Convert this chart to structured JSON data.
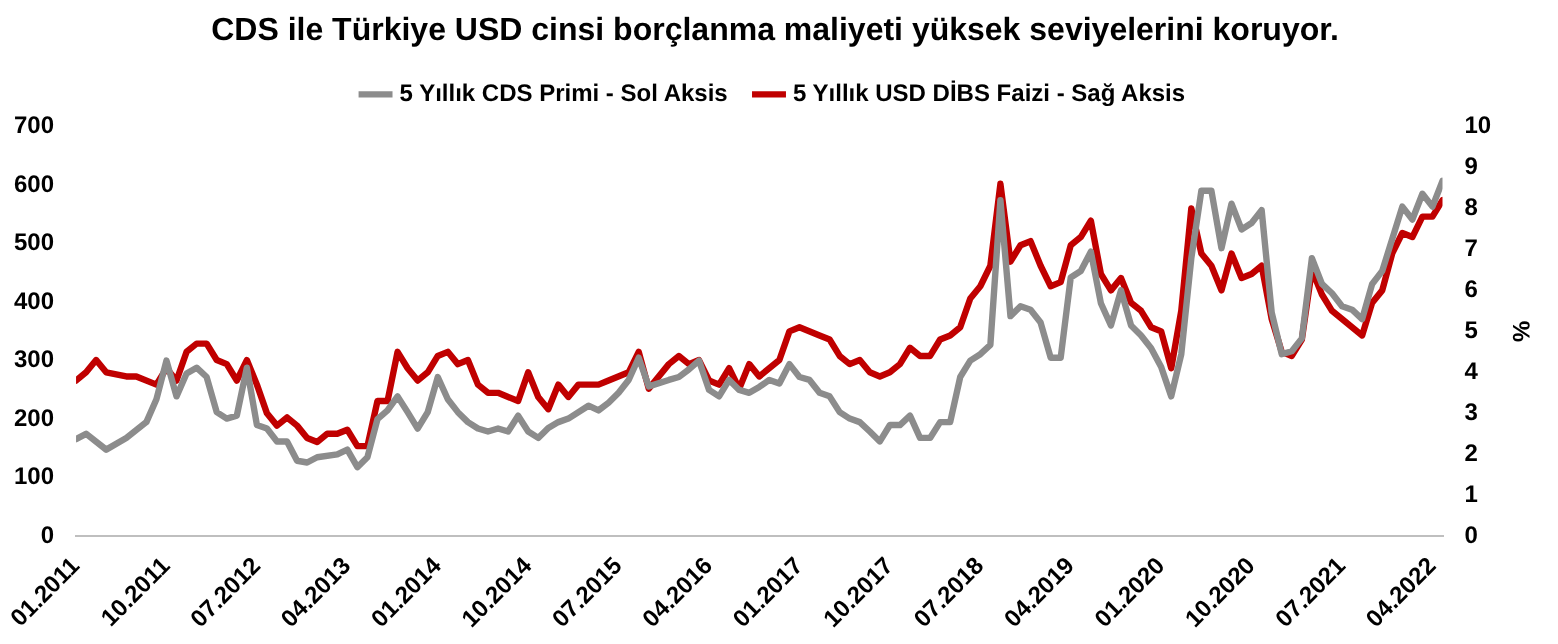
{
  "chart_data": {
    "type": "line",
    "title": "CDS ile Türkiye USD cinsi borçlanma maliyeti yüksek seviyelerini koruyor.",
    "y2label": "%",
    "legend": "top",
    "grid": false,
    "marker": "none",
    "line_style": "solid",
    "xlim": [
      "2011-01",
      "2022-05"
    ],
    "xticks": [
      {
        "value": "2011-01",
        "label": "01.2011"
      },
      {
        "value": "2011-10",
        "label": "10.2011"
      },
      {
        "value": "2012-07",
        "label": "07.2012"
      },
      {
        "value": "2013-04",
        "label": "04.2013"
      },
      {
        "value": "2014-01",
        "label": "01.2014"
      },
      {
        "value": "2014-10",
        "label": "10.2014"
      },
      {
        "value": "2015-07",
        "label": "07.2015"
      },
      {
        "value": "2016-04",
        "label": "04.2016"
      },
      {
        "value": "2017-01",
        "label": "01.2017"
      },
      {
        "value": "2017-10",
        "label": "10.2017"
      },
      {
        "value": "2018-07",
        "label": "07.2018"
      },
      {
        "value": "2019-04",
        "label": "04.2019"
      },
      {
        "value": "2020-01",
        "label": "01.2020"
      },
      {
        "value": "2020-10",
        "label": "10.2020"
      },
      {
        "value": "2021-07",
        "label": "07.2021"
      },
      {
        "value": "2022-04",
        "label": "04.2022"
      }
    ],
    "ylim": [
      0,
      700
    ],
    "yticks": [
      0,
      100,
      200,
      300,
      400,
      500,
      600,
      700
    ],
    "y2lim": [
      0,
      10
    ],
    "y2ticks": [
      0,
      1,
      2,
      3,
      4,
      5,
      6,
      7,
      8,
      9,
      10
    ],
    "series": [
      {
        "name": "5 Yıllık CDS Primi - Sol Aksis",
        "color": "#8c8c8c",
        "x": [
          "2011-01",
          "2011-02",
          "2011-04",
          "2011-06",
          "2011-08",
          "2011-09",
          "2011-10",
          "2011-11",
          "2011-12",
          "2012-01",
          "2012-02",
          "2012-03",
          "2012-04",
          "2012-05",
          "2012-06",
          "2012-07",
          "2012-08",
          "2012-09",
          "2012-10",
          "2012-11",
          "2012-12",
          "2013-01",
          "2013-03",
          "2013-04",
          "2013-05",
          "2013-06",
          "2013-07",
          "2013-08",
          "2013-09",
          "2013-10",
          "2013-11",
          "2013-12",
          "2014-01",
          "2014-02",
          "2014-03",
          "2014-04",
          "2014-05",
          "2014-06",
          "2014-07",
          "2014-08",
          "2014-09",
          "2014-10",
          "2014-11",
          "2014-12",
          "2015-01",
          "2015-02",
          "2015-04",
          "2015-05",
          "2015-06",
          "2015-07",
          "2015-08",
          "2015-09",
          "2015-10",
          "2015-12",
          "2016-01",
          "2016-02",
          "2016-03",
          "2016-04",
          "2016-05",
          "2016-06",
          "2016-07",
          "2016-08",
          "2016-09",
          "2016-10",
          "2016-11",
          "2016-12",
          "2017-01",
          "2017-02",
          "2017-03",
          "2017-04",
          "2017-05",
          "2017-06",
          "2017-07",
          "2017-08",
          "2017-09",
          "2017-10",
          "2017-11",
          "2017-12",
          "2018-01",
          "2018-02",
          "2018-03",
          "2018-04",
          "2018-05",
          "2018-06",
          "2018-07",
          "2018-08",
          "2018-09",
          "2018-10",
          "2018-11",
          "2018-12",
          "2019-01",
          "2019-02",
          "2019-03",
          "2019-04",
          "2019-05",
          "2019-06",
          "2019-07",
          "2019-08",
          "2019-09",
          "2019-10",
          "2019-11",
          "2019-12",
          "2020-01",
          "2020-02",
          "2020-03",
          "2020-04",
          "2020-05",
          "2020-06",
          "2020-07",
          "2020-08",
          "2020-09",
          "2020-10",
          "2020-11",
          "2020-12",
          "2021-01",
          "2021-02",
          "2021-03",
          "2021-04",
          "2021-05",
          "2021-06",
          "2021-07",
          "2021-08",
          "2021-09",
          "2021-10",
          "2021-11",
          "2022-01",
          "2022-02",
          "2022-03",
          "2022-04",
          "2022-05"
        ],
        "values": [
          166,
          175,
          148,
          168,
          195,
          234,
          300,
          239,
          278,
          288,
          272,
          212,
          201,
          206,
          288,
          190,
          184,
          162,
          162,
          129,
          126,
          135,
          140,
          148,
          118,
          135,
          200,
          215,
          239,
          212,
          184,
          212,
          272,
          234,
          212,
          195,
          184,
          179,
          184,
          179,
          206,
          179,
          168,
          185,
          195,
          201,
          223,
          215,
          228,
          245,
          267,
          305,
          256,
          267,
          272,
          285,
          300,
          250,
          239,
          267,
          250,
          245,
          255,
          267,
          261,
          294,
          272,
          267,
          245,
          239,
          212,
          201,
          195,
          179,
          162,
          190,
          190,
          206,
          168,
          168,
          195,
          195,
          272,
          300,
          311,
          327,
          574,
          376,
          393,
          387,
          365,
          305,
          305,
          442,
          453,
          486,
          398,
          360,
          420,
          360,
          343,
          321,
          289,
          239,
          311,
          475,
          590,
          590,
          492,
          568,
          524,
          535,
          557,
          382,
          311,
          316,
          338,
          475,
          431,
          415,
          393,
          387,
          371,
          431,
          453,
          563,
          541,
          585,
          563,
          607
        ]
      },
      {
        "name": "5 Yıllık USD DİBS Faizi - Sağ Aksis",
        "color": "#c00000",
        "axis": "y2",
        "x": [
          "2011-01",
          "2011-02",
          "2011-03",
          "2011-04",
          "2011-06",
          "2011-07",
          "2011-09",
          "2011-10",
          "2011-11",
          "2011-12",
          "2012-01",
          "2012-02",
          "2012-03",
          "2012-04",
          "2012-05",
          "2012-06",
          "2012-07",
          "2012-08",
          "2012-09",
          "2012-10",
          "2012-11",
          "2012-12",
          "2013-01",
          "2013-02",
          "2013-03",
          "2013-04",
          "2013-05",
          "2013-06",
          "2013-07",
          "2013-08",
          "2013-09",
          "2013-10",
          "2013-11",
          "2013-12",
          "2014-01",
          "2014-02",
          "2014-03",
          "2014-04",
          "2014-05",
          "2014-06",
          "2014-07",
          "2014-09",
          "2014-10",
          "2014-11",
          "2014-12",
          "2015-01",
          "2015-02",
          "2015-03",
          "2015-05",
          "2015-06",
          "2015-08",
          "2015-09",
          "2015-10",
          "2015-12",
          "2016-01",
          "2016-02",
          "2016-03",
          "2016-04",
          "2016-05",
          "2016-06",
          "2016-07",
          "2016-08",
          "2016-09",
          "2016-11",
          "2016-12",
          "2017-01",
          "2017-03",
          "2017-04",
          "2017-05",
          "2017-06",
          "2017-07",
          "2017-08",
          "2017-09",
          "2017-10",
          "2017-11",
          "2017-12",
          "2018-01",
          "2018-02",
          "2018-03",
          "2018-04",
          "2018-05",
          "2018-06",
          "2018-07",
          "2018-08",
          "2018-09",
          "2018-10",
          "2018-11",
          "2018-12",
          "2019-01",
          "2019-02",
          "2019-03",
          "2019-04",
          "2019-05",
          "2019-06",
          "2019-07",
          "2019-08",
          "2019-09",
          "2019-10",
          "2019-11",
          "2019-12",
          "2020-01",
          "2020-02",
          "2020-03",
          "2020-04",
          "2020-05",
          "2020-06",
          "2020-07",
          "2020-08",
          "2020-09",
          "2020-10",
          "2020-11",
          "2020-12",
          "2021-01",
          "2021-02",
          "2021-03",
          "2021-04",
          "2021-05",
          "2021-06",
          "2021-07",
          "2021-08",
          "2021-09",
          "2021-10",
          "2021-11",
          "2021-12",
          "2022-01",
          "2022-02",
          "2022-03",
          "2022-04",
          "2022-05"
        ],
        "values": [
          3.8,
          4.0,
          4.3,
          4.0,
          3.9,
          3.9,
          3.7,
          4.1,
          3.8,
          4.5,
          4.7,
          4.7,
          4.3,
          4.2,
          3.8,
          4.3,
          3.7,
          3.0,
          2.7,
          2.9,
          2.7,
          2.4,
          2.3,
          2.5,
          2.5,
          2.6,
          2.2,
          2.2,
          3.3,
          3.3,
          4.5,
          4.1,
          3.8,
          4.0,
          4.4,
          4.5,
          4.2,
          4.3,
          3.7,
          3.5,
          3.5,
          3.3,
          4.0,
          3.4,
          3.1,
          3.7,
          3.4,
          3.7,
          3.7,
          3.8,
          4.0,
          4.5,
          3.6,
          4.2,
          4.4,
          4.2,
          4.3,
          3.8,
          3.7,
          4.1,
          3.6,
          4.2,
          3.9,
          4.3,
          5.0,
          5.1,
          4.9,
          4.8,
          4.4,
          4.2,
          4.3,
          4.0,
          3.9,
          4.0,
          4.2,
          4.6,
          4.4,
          4.4,
          4.8,
          4.9,
          5.1,
          5.8,
          6.1,
          6.6,
          8.6,
          6.7,
          7.1,
          7.2,
          6.6,
          6.1,
          6.2,
          7.1,
          7.3,
          7.7,
          6.4,
          6.0,
          6.3,
          5.7,
          5.5,
          5.1,
          5.0,
          4.1,
          5.5,
          8.0,
          6.9,
          6.6,
          6.0,
          6.9,
          6.3,
          6.4,
          6.6,
          5.3,
          4.5,
          4.4,
          4.8,
          6.5,
          5.9,
          5.5,
          5.3,
          5.1,
          4.9,
          5.7,
          6.0,
          6.9,
          7.4,
          7.3,
          7.8,
          7.8,
          8.2
        ]
      }
    ]
  }
}
